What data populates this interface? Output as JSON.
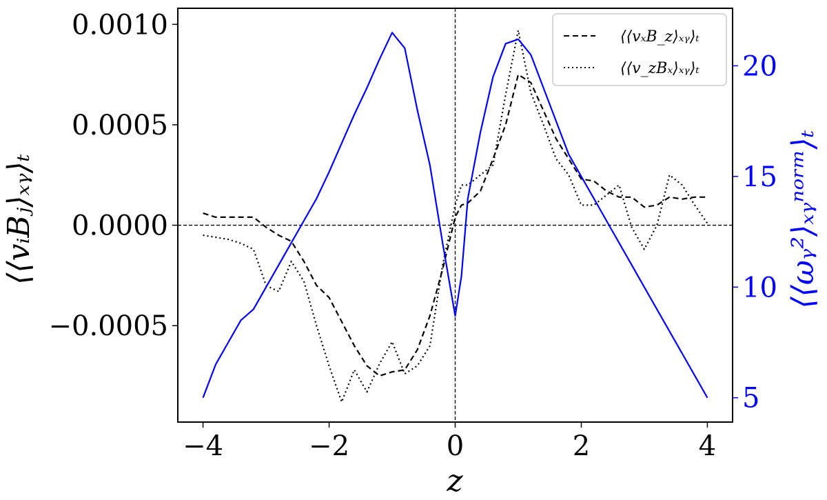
{
  "chart_data": {
    "type": "line",
    "title": "",
    "xlabel": "z",
    "ylabel_left": "⟨⟨vᵢBⱼ⟩ₓᵧ⟩ₜ",
    "ylabel_right": "⟨⟨ωᵧ²⟩ₓᵧⁿᵒʳᵐ⟩ₜ",
    "xlim": [
      -4.4,
      4.4
    ],
    "ylim_left": [
      -0.00098,
      0.00108
    ],
    "ylim_right": [
      3.9,
      22.6
    ],
    "x_ticks": [
      -4,
      -2,
      0,
      2,
      4
    ],
    "x_tick_labels": [
      "−4",
      "−2",
      "0",
      "2",
      "4"
    ],
    "y_ticks_left": [
      -0.0005,
      0.0,
      0.0005,
      0.001
    ],
    "y_tick_labels_left": [
      "−0.0005",
      "0.0000",
      "0.0005",
      "0.0010"
    ],
    "y_ticks_right": [
      5,
      10,
      15,
      20
    ],
    "y_tick_labels_right": [
      "5",
      "10",
      "15",
      "20"
    ],
    "right_axis_color": "#0000ff",
    "reference_lines": {
      "y_left": 0.0,
      "x": 0.0
    },
    "legend_position": "top-right",
    "series": [
      {
        "name": "⟨⟨vₓB_z⟩ₓᵧ⟩ₜ",
        "axis": "left",
        "color": "#000000",
        "style": "dashed",
        "x": [
          -4.0,
          -3.8,
          -3.6,
          -3.4,
          -3.2,
          -3.0,
          -2.8,
          -2.6,
          -2.4,
          -2.2,
          -2.0,
          -1.8,
          -1.6,
          -1.4,
          -1.2,
          -1.0,
          -0.8,
          -0.6,
          -0.4,
          -0.2,
          0.0,
          0.1,
          0.2,
          0.4,
          0.6,
          0.8,
          1.0,
          1.2,
          1.4,
          1.6,
          1.8,
          2.0,
          2.2,
          2.4,
          2.6,
          2.8,
          3.0,
          3.2,
          3.4,
          3.6,
          3.8,
          4.0
        ],
        "y": [
          6e-05,
          4e-05,
          4e-05,
          4e-05,
          4e-05,
          -1e-05,
          -5e-05,
          -8e-05,
          -0.00018,
          -0.0003,
          -0.00036,
          -0.00048,
          -0.0006,
          -0.0007,
          -0.00075,
          -0.00073,
          -0.00072,
          -0.00062,
          -0.00045,
          -0.00022,
          4e-05,
          0.0001,
          0.00011,
          0.00017,
          0.00033,
          0.0005,
          0.00075,
          0.00071,
          0.00057,
          0.00043,
          0.00033,
          0.00023,
          0.00022,
          0.00017,
          0.00014,
          0.00014,
          9e-05,
          0.0001,
          0.00014,
          0.00013,
          0.00014,
          0.00014
        ]
      },
      {
        "name": "⟨⟨v_zBₓ⟩ₓᵧ⟩ₜ",
        "axis": "left",
        "color": "#000000",
        "style": "dotted",
        "x": [
          -4.0,
          -3.8,
          -3.6,
          -3.4,
          -3.2,
          -3.0,
          -2.8,
          -2.6,
          -2.4,
          -2.2,
          -2.0,
          -1.8,
          -1.6,
          -1.4,
          -1.2,
          -1.0,
          -0.8,
          -0.6,
          -0.4,
          -0.2,
          0.0,
          0.1,
          0.2,
          0.4,
          0.6,
          0.8,
          1.0,
          1.2,
          1.4,
          1.6,
          1.8,
          2.0,
          2.2,
          2.4,
          2.6,
          2.8,
          3.0,
          3.2,
          3.4,
          3.6,
          3.8,
          4.0
        ],
        "y": [
          -5e-05,
          -6e-05,
          -7e-05,
          -9e-05,
          -0.00012,
          -0.0003,
          -0.00033,
          -0.00018,
          -0.00028,
          -0.0005,
          -0.0007,
          -0.00088,
          -0.00072,
          -0.00083,
          -0.00069,
          -0.00058,
          -0.00074,
          -0.0007,
          -0.0006,
          -0.0002,
          0.0001,
          0.0002,
          0.0002,
          0.00025,
          0.0003,
          0.00065,
          0.00097,
          0.00066,
          0.0005,
          0.00033,
          0.00025,
          0.0001,
          0.0001,
          0.00015,
          0.0002,
          -1e-05,
          -0.00012,
          0.0,
          0.00025,
          0.0002,
          0.0001,
          1e-05
        ]
      },
      {
        "name": "⟨⟨ωᵧ²⟩ₓᵧⁿᵒʳᵐ⟩ₜ",
        "axis": "right",
        "color": "#0000ff",
        "style": "solid",
        "x": [
          -4.0,
          -3.8,
          -3.6,
          -3.4,
          -3.2,
          -3.0,
          -2.8,
          -2.6,
          -2.4,
          -2.2,
          -2.0,
          -1.8,
          -1.6,
          -1.4,
          -1.2,
          -1.0,
          -0.8,
          -0.6,
          -0.4,
          -0.2,
          0.0,
          0.1,
          0.2,
          0.4,
          0.6,
          0.8,
          1.0,
          1.2,
          1.4,
          1.6,
          1.8,
          2.0,
          2.2,
          2.4,
          2.6,
          2.8,
          3.0,
          3.2,
          3.4,
          3.6,
          3.8,
          4.0
        ],
        "y": [
          5.0,
          6.5,
          7.5,
          8.5,
          9.0,
          10.0,
          11.0,
          12.0,
          13.0,
          14.0,
          15.2,
          16.5,
          17.8,
          19.0,
          20.3,
          21.5,
          20.8,
          18.0,
          15.5,
          12.0,
          8.7,
          10.5,
          14.0,
          17.0,
          19.5,
          21.0,
          21.2,
          20.5,
          19.0,
          17.5,
          16.0,
          15.0,
          14.0,
          13.0,
          12.0,
          11.0,
          10.0,
          9.0,
          8.0,
          7.0,
          6.0,
          5.0
        ]
      }
    ]
  }
}
